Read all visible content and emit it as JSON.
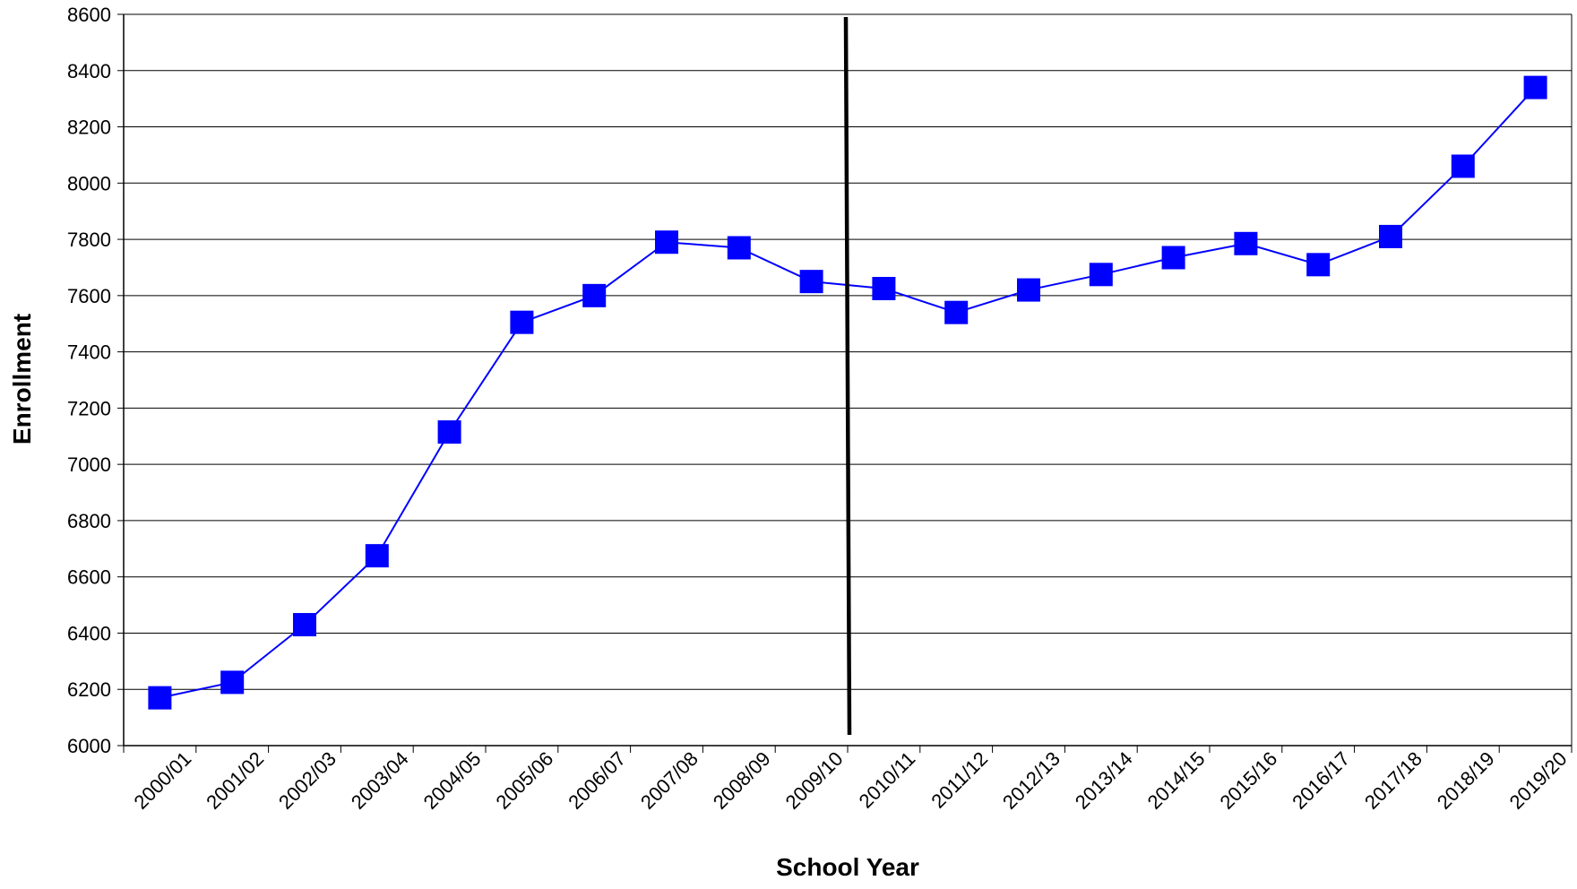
{
  "chart_data": {
    "type": "line",
    "xlabel": "School Year",
    "ylabel": "Enrollment",
    "ylim": [
      6000,
      8600
    ],
    "yticks": [
      6000,
      6200,
      6400,
      6600,
      6800,
      7000,
      7200,
      7400,
      7600,
      7800,
      8000,
      8200,
      8400,
      8600
    ],
    "grid": "horizontal",
    "categories": [
      "2000/01",
      "2001/02",
      "2002/03",
      "2003/04",
      "2004/05",
      "2005/06",
      "2006/07",
      "2007/08",
      "2008/09",
      "2009/10",
      "2010/11",
      "2011/12",
      "2012/13",
      "2013/14",
      "2014/15",
      "2015/16",
      "2016/17",
      "2017/18",
      "2018/19",
      "2019/20"
    ],
    "series": [
      {
        "values": [
          6170,
          6225,
          6430,
          6675,
          7115,
          7505,
          7600,
          7790,
          7770,
          7650,
          7625,
          7540,
          7620,
          7675,
          7735,
          7785,
          7710,
          7810,
          8060,
          8340
        ],
        "color": "#0000ff",
        "marker": "square"
      }
    ],
    "annotations": [
      {
        "type": "vertical-divider",
        "between": [
          "2009/10",
          "2010/11"
        ],
        "color": "#000000"
      }
    ]
  }
}
